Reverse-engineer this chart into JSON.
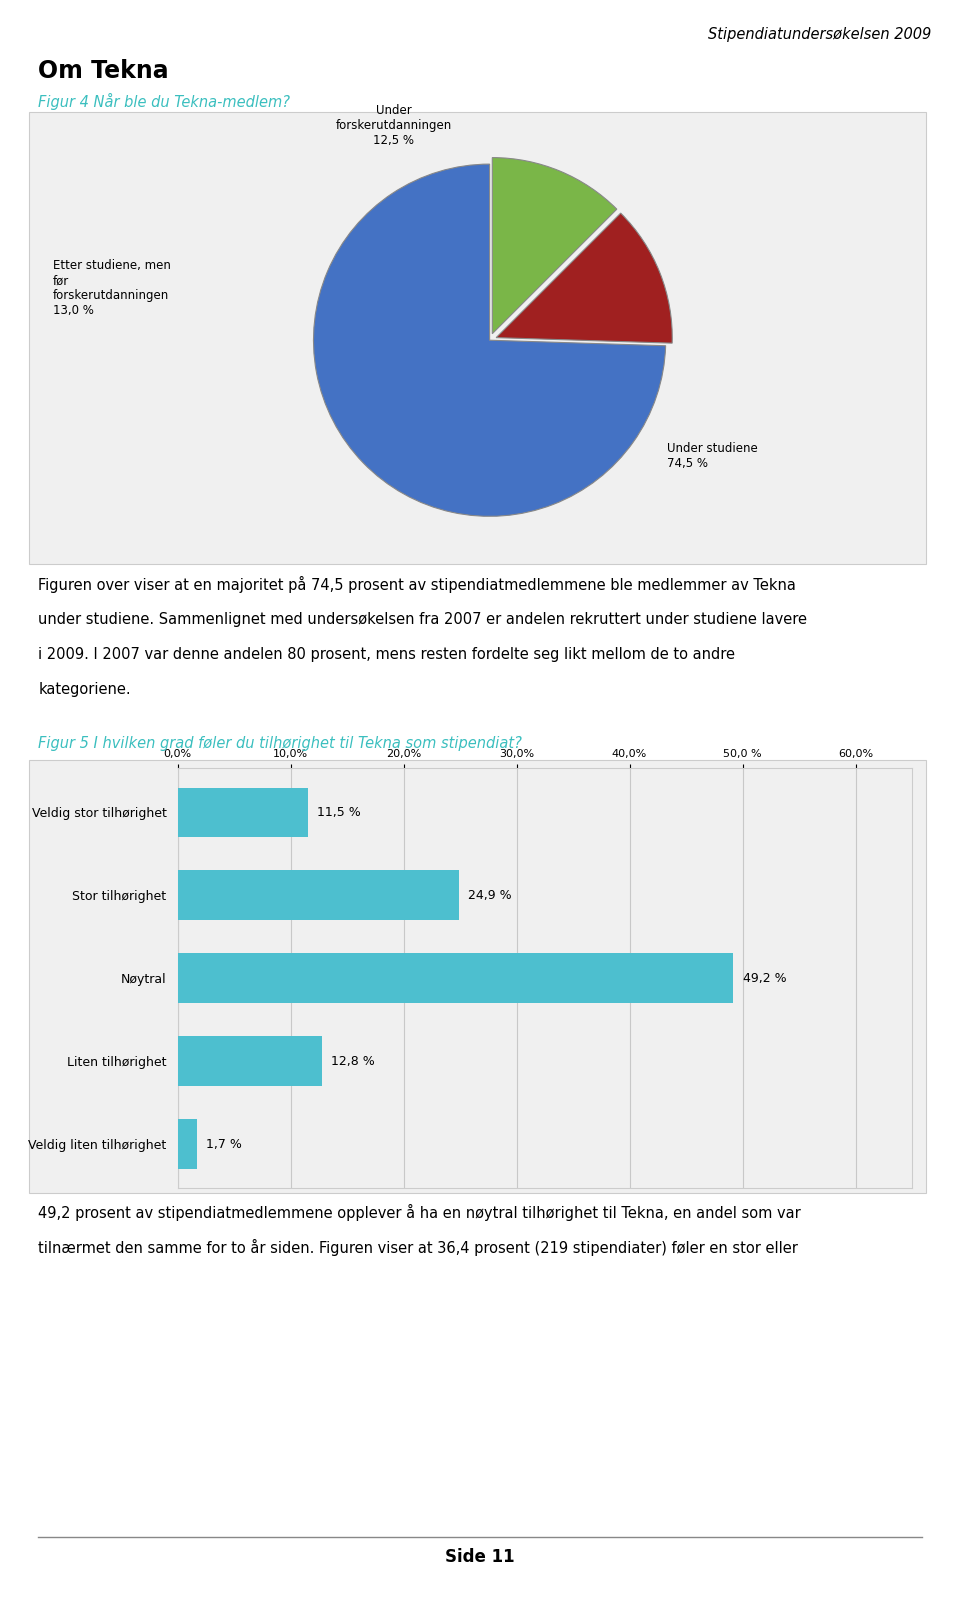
{
  "header_text": "Stipendiatundersøkelsen 2009",
  "section_title": "Om Tekna",
  "fig4_title": "Figur 4 Når ble du Tekna-medlem?",
  "pie_values": [
    12.5,
    13.0,
    74.5
  ],
  "pie_colors": [
    "#7ab648",
    "#a02020",
    "#4472c4"
  ],
  "pie_explode": [
    0.04,
    0.04,
    0.0
  ],
  "pie_label_green": "Under\nforskerutdanningen\n12,5 %",
  "pie_label_red": "Etter studiene, men\nfør\nforskerutdanningen\n13,0 %",
  "pie_label_blue": "Under studiene\n74,5 %",
  "paragraph1_lines": [
    "Figuren over viser at en majoritet på 74,5 prosent av stipendiatmedlemmene ble medlemmer av Tekna",
    "under studiene. Sammenlignet med undersøkelsen fra 2007 er andelen rekruttert under studiene lavere",
    "i 2009. I 2007 var denne andelen 80 prosent, mens resten fordelte seg likt mellom de to andre",
    "kategoriene."
  ],
  "fig5_title": "Figur 5 I hvilken grad føler du tilhørighet til Tekna som stipendiat?",
  "bar_categories": [
    "Veldig stor tilhørighet",
    "Stor tilhørighet",
    "Nøytral",
    "Liten tilhørighet",
    "Veldig liten tilhørighet"
  ],
  "bar_values": [
    11.5,
    24.9,
    49.2,
    12.8,
    1.7
  ],
  "bar_color": "#4dbfcf",
  "bar_value_labels": [
    "11,5 %",
    "24,9 %",
    "49,2 %",
    "12,8 %",
    "1,7 %"
  ],
  "bar_xticks": [
    0,
    10,
    20,
    30,
    40,
    50,
    60
  ],
  "bar_xtick_labels": [
    "0,0%",
    "10,0%",
    "20,0%",
    "30,0%",
    "40,0%",
    "50,0 %",
    "60,0%"
  ],
  "paragraph2_lines": [
    "49,2 prosent av stipendiatmedlemmene opplever å ha en nøytral tilhørighet til Tekna, en andel som var",
    "tilnærmet den samme for to år siden. Figuren viser at 36,4 prosent (219 stipendiater) føler en stor eller"
  ],
  "footer_text": "Side 11",
  "fig_caption_color": "#3bbfbf",
  "background_color": "#ffffff",
  "box_bg_color": "#f0f0f0",
  "box_edge_color": "#cccccc"
}
